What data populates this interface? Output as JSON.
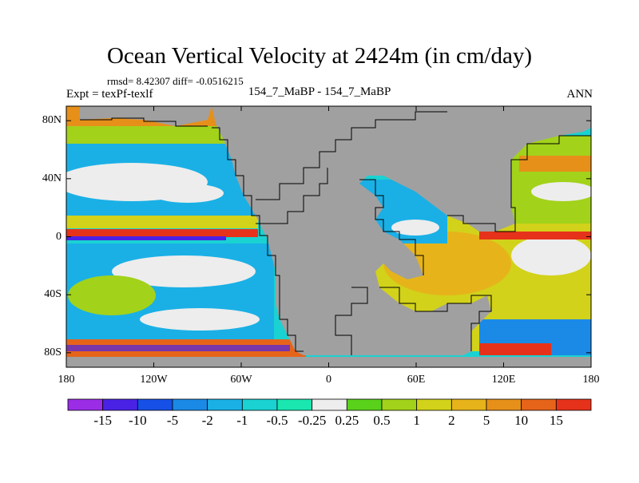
{
  "title": "Ocean Vertical Velocity at 2424m (in cm/day)",
  "stats": "rmsd= 8.42307 diff= -0.0516215",
  "experiment": "Expt = texPf-texlf",
  "center_label": "154_7_MaBP - 154_7_MaBP",
  "season": "ANN",
  "map": {
    "projection": "cylindrical equidistant",
    "lon_range": [
      -180,
      180
    ],
    "lat_range": [
      -90,
      90
    ],
    "land_color": "#a0a0a0",
    "lat_ticks": [
      {
        "value": 80,
        "label": "80N"
      },
      {
        "value": 40,
        "label": "40N"
      },
      {
        "value": 0,
        "label": "0"
      },
      {
        "value": -40,
        "label": "40S"
      },
      {
        "value": -80,
        "label": "80S"
      }
    ],
    "lon_ticks": [
      {
        "value": -180,
        "label": "180"
      },
      {
        "value": -120,
        "label": "120W"
      },
      {
        "value": -60,
        "label": "60W"
      },
      {
        "value": 0,
        "label": "0"
      },
      {
        "value": 60,
        "label": "60E"
      },
      {
        "value": 120,
        "label": "120E"
      },
      {
        "value": 180,
        "label": "180"
      }
    ]
  },
  "colorbar": {
    "colors": [
      "#9b2de6",
      "#4a22e6",
      "#1750e6",
      "#1a8ae6",
      "#1ab0e6",
      "#1ad2d2",
      "#1ae6b0",
      "#ededed",
      "#5ad11a",
      "#a2d21a",
      "#d2d21a",
      "#e6b41a",
      "#e6901a",
      "#e6641a",
      "#e6321a"
    ],
    "labels": [
      "-15",
      "-10",
      "-5",
      "-2",
      "-1",
      "-0.5",
      "-0.25",
      "0.25",
      "0.5",
      "1",
      "2",
      "5",
      "10",
      "15"
    ]
  }
}
